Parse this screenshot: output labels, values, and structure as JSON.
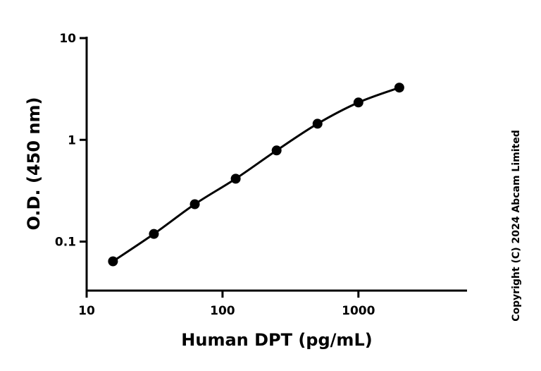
{
  "chart_data": {
    "type": "scatter",
    "x_label": "Human DPT (pg/mL)",
    "y_label": "O.D. (450 nm)",
    "annotation": "Copyright (C) 2024 Abcam Limited",
    "xscale": "log",
    "yscale": "log",
    "xlim": [
      10,
      6300
    ],
    "ylim": [
      0.033,
      10
    ],
    "xticks": [
      10,
      100,
      1000
    ],
    "yticks": [
      0.1,
      1,
      10
    ],
    "fit_curve": true,
    "series": [
      {
        "name": "Human DPT",
        "color": "#000000",
        "x": [
          15.625,
          31.25,
          62.5,
          125,
          250,
          500,
          1000,
          2000
        ],
        "values": [
          0.064,
          0.119,
          0.233,
          0.415,
          0.787,
          1.44,
          2.33,
          3.26
        ]
      }
    ]
  }
}
